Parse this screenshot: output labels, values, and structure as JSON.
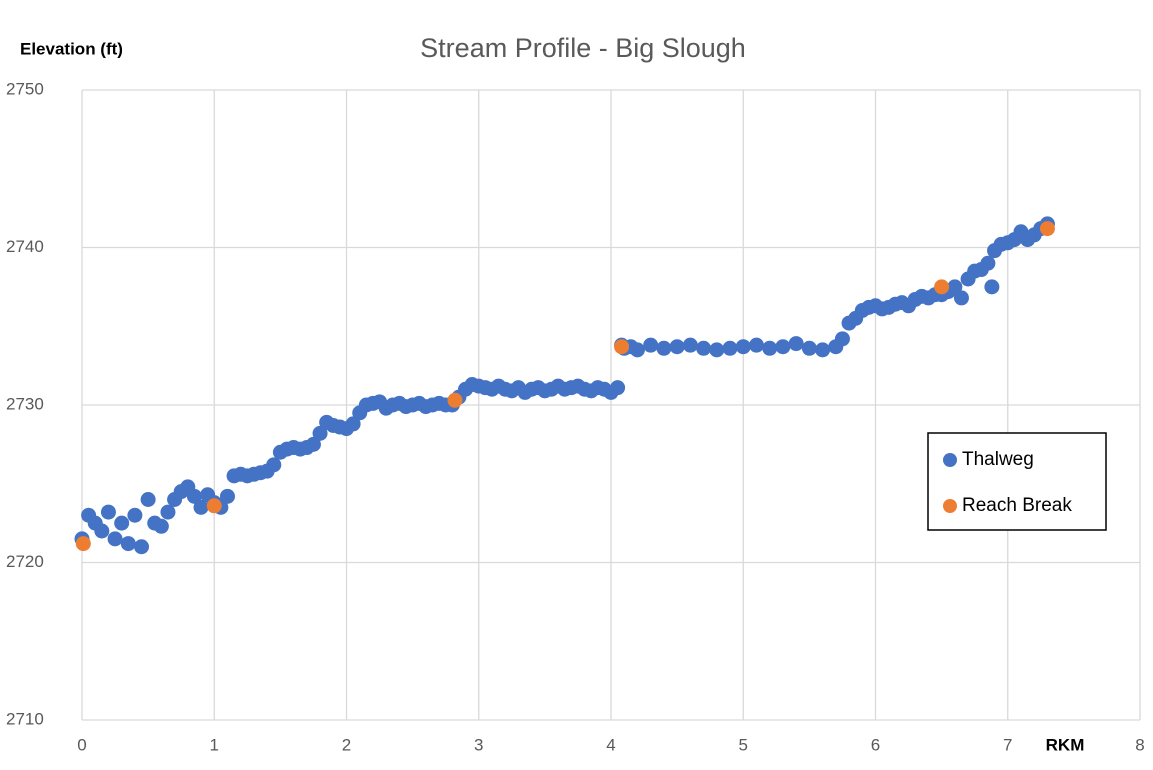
{
  "chart_data": {
    "type": "scatter",
    "title": "Stream Profile - Big Slough",
    "y_label": "Elevation  (ft)",
    "x_label": "RKM",
    "xlim": [
      0,
      8
    ],
    "xticks": [
      0,
      1,
      2,
      3,
      4,
      5,
      6,
      7,
      8
    ],
    "ylim": [
      2710,
      2750
    ],
    "yticks": [
      2710,
      2720,
      2730,
      2740,
      2750
    ],
    "grid": true,
    "legend": "right",
    "series": [
      {
        "name": "Thalweg",
        "color": "#4472c4",
        "x": [
          0.0,
          0.05,
          0.1,
          0.15,
          0.2,
          0.25,
          0.3,
          0.35,
          0.4,
          0.45,
          0.5,
          0.55,
          0.6,
          0.65,
          0.7,
          0.75,
          0.8,
          0.85,
          0.9,
          0.95,
          1.0,
          1.05,
          1.1,
          1.15,
          1.2,
          1.25,
          1.3,
          1.35,
          1.4,
          1.45,
          1.5,
          1.55,
          1.6,
          1.65,
          1.7,
          1.75,
          1.8,
          1.85,
          1.9,
          1.95,
          2.0,
          2.05,
          2.1,
          2.15,
          2.2,
          2.25,
          2.3,
          2.35,
          2.4,
          2.45,
          2.5,
          2.55,
          2.6,
          2.65,
          2.7,
          2.75,
          2.8,
          2.85,
          2.9,
          2.95,
          3.0,
          3.05,
          3.1,
          3.15,
          3.2,
          3.25,
          3.3,
          3.35,
          3.4,
          3.45,
          3.5,
          3.55,
          3.6,
          3.65,
          3.7,
          3.75,
          3.8,
          3.85,
          3.9,
          3.95,
          4.0,
          4.05,
          4.08,
          4.1,
          4.15,
          4.2,
          4.3,
          4.4,
          4.5,
          4.6,
          4.7,
          4.8,
          4.9,
          5.0,
          5.1,
          5.2,
          5.3,
          5.4,
          5.5,
          5.6,
          5.7,
          5.75,
          5.8,
          5.85,
          5.9,
          5.95,
          6.0,
          6.05,
          6.1,
          6.15,
          6.2,
          6.25,
          6.3,
          6.35,
          6.4,
          6.45,
          6.5,
          6.55,
          6.6,
          6.65,
          6.7,
          6.75,
          6.8,
          6.85,
          6.88,
          6.9,
          6.95,
          7.0,
          7.05,
          7.1,
          7.15,
          7.2,
          7.25,
          7.3
        ],
        "values": [
          2721.5,
          2723,
          2722.5,
          2722,
          2723.2,
          2721.5,
          2722.5,
          2721.2,
          2723,
          2721,
          2724,
          2722.5,
          2722.3,
          2723.2,
          2724,
          2724.5,
          2724.8,
          2724.2,
          2723.5,
          2724.3,
          2723.8,
          2723.5,
          2724.2,
          2725.5,
          2725.6,
          2725.5,
          2725.6,
          2725.7,
          2725.8,
          2726.2,
          2727,
          2727.2,
          2727.3,
          2727.2,
          2727.3,
          2727.5,
          2728.2,
          2728.9,
          2728.7,
          2728.6,
          2728.5,
          2728.8,
          2729.5,
          2730,
          2730.1,
          2730.2,
          2729.8,
          2730,
          2730.1,
          2729.9,
          2730,
          2730.1,
          2729.9,
          2730,
          2730.1,
          2730,
          2730,
          2730.5,
          2731,
          2731.3,
          2731.2,
          2731.1,
          2731,
          2731.2,
          2731,
          2730.9,
          2731.1,
          2730.8,
          2731,
          2731.1,
          2730.9,
          2731,
          2731.2,
          2731,
          2731.1,
          2731.2,
          2731,
          2730.9,
          2731.1,
          2731,
          2730.8,
          2731.1,
          2733.8,
          2733.6,
          2733.7,
          2733.5,
          2733.8,
          2733.6,
          2733.7,
          2733.8,
          2733.6,
          2733.5,
          2733.6,
          2733.7,
          2733.8,
          2733.6,
          2733.7,
          2733.9,
          2733.6,
          2733.5,
          2733.7,
          2734.2,
          2735.2,
          2735.5,
          2736,
          2736.2,
          2736.3,
          2736.1,
          2736.2,
          2736.4,
          2736.5,
          2736.3,
          2736.7,
          2736.9,
          2736.8,
          2737,
          2737,
          2737.2,
          2737.5,
          2736.8,
          2738,
          2738.5,
          2738.6,
          2739,
          2737.5,
          2739.8,
          2740.2,
          2740.3,
          2740.5,
          2741,
          2740.5,
          2740.8,
          2741.2,
          2741.5
        ]
      },
      {
        "name": "Reach Break",
        "color": "#ed7d31",
        "x": [
          0.01,
          1.0,
          2.82,
          4.08,
          6.5,
          7.3
        ],
        "values": [
          2721.2,
          2723.6,
          2730.3,
          2733.7,
          2737.5,
          2741.2
        ]
      }
    ]
  }
}
